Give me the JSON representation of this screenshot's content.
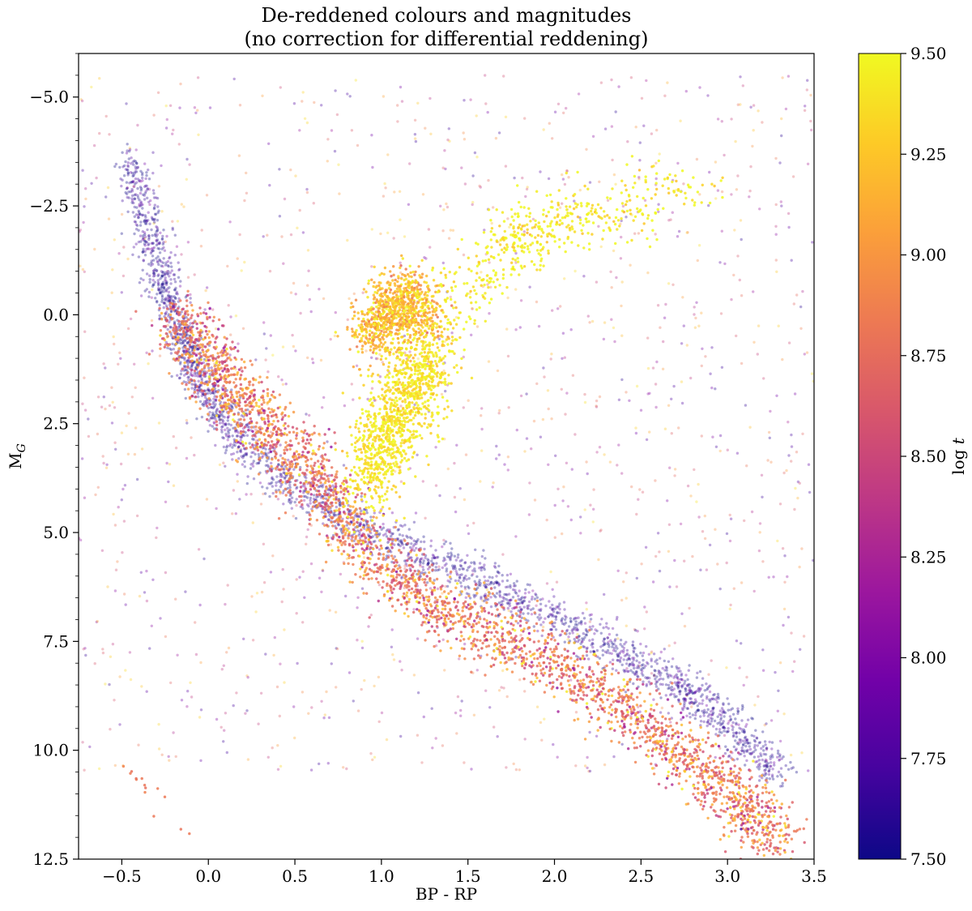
{
  "chart_data": {
    "type": "scatter",
    "title_lines": [
      "De-reddened colours and magnitudes",
      "(no correction for differential reddening)"
    ],
    "xlabel": "BP - RP",
    "ylabel_main": "M",
    "ylabel_sub": "G",
    "xlim": [
      -0.75,
      3.5
    ],
    "ylim": [
      12.5,
      -6.0
    ],
    "y_inverted": true,
    "x_ticks": [
      {
        "value": -0.5,
        "label": "−0.5"
      },
      {
        "value": 0.0,
        "label": "0.0"
      },
      {
        "value": 0.5,
        "label": "0.5"
      },
      {
        "value": 1.0,
        "label": "1.0"
      },
      {
        "value": 1.5,
        "label": "1.5"
      },
      {
        "value": 2.0,
        "label": "2.0"
      },
      {
        "value": 2.5,
        "label": "2.5"
      },
      {
        "value": 3.0,
        "label": "3.0"
      },
      {
        "value": 3.5,
        "label": "3.5"
      }
    ],
    "y_ticks": [
      {
        "value": -5.0,
        "label": "−5.0"
      },
      {
        "value": -2.5,
        "label": "−2.5"
      },
      {
        "value": 0.0,
        "label": "0.0"
      },
      {
        "value": 2.5,
        "label": "2.5"
      },
      {
        "value": 5.0,
        "label": "5.0"
      },
      {
        "value": 7.5,
        "label": "7.5"
      },
      {
        "value": 10.0,
        "label": "10.0"
      },
      {
        "value": 12.5,
        "label": "12.5"
      }
    ],
    "grid": false,
    "colorbar": {
      "label_prefix": "log ",
      "label_var": "t",
      "range": [
        7.5,
        9.5
      ],
      "colormap": "plasma",
      "stops": [
        "#0d0887",
        "#46039f",
        "#7201a8",
        "#9c179e",
        "#bd3786",
        "#d8576b",
        "#ed7953",
        "#fb9f3a",
        "#fdca26",
        "#f0f921"
      ],
      "ticks": [
        {
          "value": 7.5,
          "label": "7.50"
        },
        {
          "value": 7.75,
          "label": "7.75"
        },
        {
          "value": 8.0,
          "label": "8.00"
        },
        {
          "value": 8.25,
          "label": "8.25"
        },
        {
          "value": 8.5,
          "label": "8.50"
        },
        {
          "value": 8.75,
          "label": "8.75"
        },
        {
          "value": 9.0,
          "label": "9.00"
        },
        {
          "value": 9.25,
          "label": "9.25"
        },
        {
          "value": 9.5,
          "label": "9.50"
        }
      ]
    },
    "series": [
      {
        "component": "young_main_sequence_blue_edge",
        "log_t": 7.6,
        "points_bp_rp_mg": [
          [
            -0.45,
            -3.5
          ],
          [
            -0.35,
            -2.0
          ],
          [
            -0.25,
            -0.5
          ],
          [
            -0.15,
            0.5
          ],
          [
            -0.05,
            1.5
          ],
          [
            0.1,
            2.5
          ],
          [
            0.35,
            3.5
          ],
          [
            0.7,
            4.5
          ],
          [
            1.1,
            5.3
          ],
          [
            1.5,
            6.0
          ],
          [
            1.9,
            6.8
          ],
          [
            2.3,
            7.6
          ],
          [
            2.7,
            8.5
          ],
          [
            3.0,
            9.4
          ],
          [
            3.3,
            10.5
          ]
        ]
      },
      {
        "component": "main_sequence_ridge",
        "log_t": 8.8,
        "points_bp_rp_mg": [
          [
            -0.2,
            0.0
          ],
          [
            0.0,
            1.0
          ],
          [
            0.2,
            2.0
          ],
          [
            0.45,
            3.0
          ],
          [
            0.7,
            4.2
          ],
          [
            0.95,
            5.6
          ],
          [
            1.3,
            6.6
          ],
          [
            1.7,
            7.4
          ],
          [
            2.1,
            8.2
          ],
          [
            2.5,
            9.3
          ],
          [
            2.8,
            10.3
          ],
          [
            3.1,
            11.3
          ],
          [
            3.3,
            12.0
          ]
        ]
      },
      {
        "component": "subgiant_turnoff_branch",
        "log_t": 9.4,
        "points_bp_rp_mg": [
          [
            0.9,
            4.0
          ],
          [
            1.0,
            3.0
          ],
          [
            1.1,
            2.3
          ],
          [
            1.2,
            1.5
          ],
          [
            1.3,
            0.8
          ]
        ]
      },
      {
        "component": "red_clump",
        "log_t": 9.2,
        "points_bp_rp_mg": [
          [
            0.95,
            0.5
          ],
          [
            1.05,
            0.0
          ],
          [
            1.15,
            -0.5
          ],
          [
            1.25,
            0.3
          ]
        ]
      },
      {
        "component": "red_giant_branch",
        "log_t": 9.45,
        "points_bp_rp_mg": [
          [
            1.4,
            0.0
          ],
          [
            1.6,
            -1.0
          ],
          [
            1.8,
            -1.8
          ],
          [
            2.0,
            -2.2
          ],
          [
            2.4,
            -2.4
          ],
          [
            2.8,
            -3.0
          ]
        ]
      },
      {
        "component": "white_dwarf_sequence",
        "log_t": 8.8,
        "points_bp_rp_mg": [
          [
            -0.45,
            10.5
          ],
          [
            -0.3,
            11.0
          ],
          [
            -0.2,
            11.6
          ],
          [
            -0.12,
            12.0
          ]
        ]
      }
    ]
  }
}
